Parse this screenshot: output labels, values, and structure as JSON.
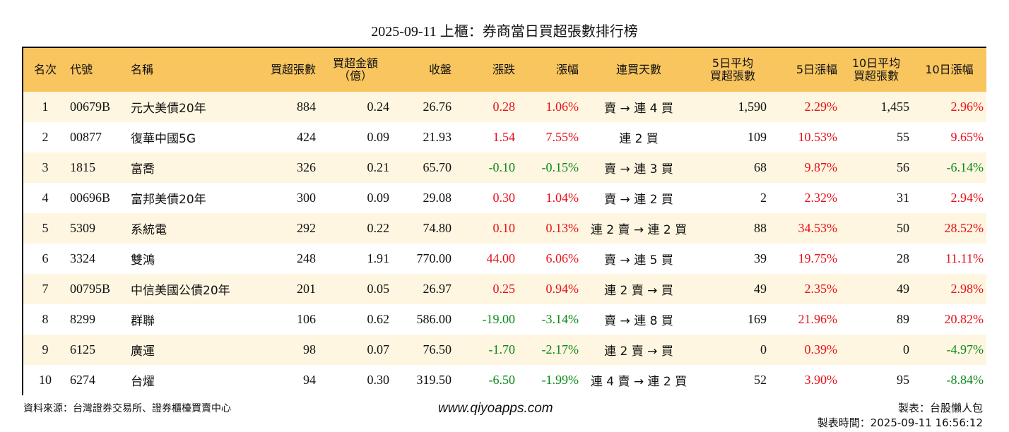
{
  "title": "2025-09-11 上櫃：券商當日買超張數排行榜",
  "headers": [
    "名次",
    "代號",
    "名稱",
    "買超張數",
    "買超金額\n（億）",
    "收盤",
    "漲跌",
    "漲幅",
    "連買天數",
    "5日平均\n買超張數",
    "5日漲幅",
    "10日平均\n買超張數",
    "10日漲幅"
  ],
  "rows": [
    {
      "rank": "1",
      "code": "00679B",
      "name": "元大美債20年",
      "net_buy": "884",
      "amount": "0.24",
      "close": "26.76",
      "change": "0.28",
      "pct": "1.06%",
      "streak": "賣 → 連 4 買",
      "avg5": "1,590",
      "pct5": "2.29%",
      "avg10": "1,455",
      "pct10": "2.96%"
    },
    {
      "rank": "2",
      "code": "00877",
      "name": "復華中國5G",
      "net_buy": "424",
      "amount": "0.09",
      "close": "21.93",
      "change": "1.54",
      "pct": "7.55%",
      "streak": "連 2 買",
      "avg5": "109",
      "pct5": "10.53%",
      "avg10": "55",
      "pct10": "9.65%"
    },
    {
      "rank": "3",
      "code": "1815",
      "name": "富喬",
      "net_buy": "326",
      "amount": "0.21",
      "close": "65.70",
      "change": "-0.10",
      "pct": "-0.15%",
      "streak": "賣 → 連 3 買",
      "avg5": "68",
      "pct5": "9.87%",
      "avg10": "56",
      "pct10": "-6.14%"
    },
    {
      "rank": "4",
      "code": "00696B",
      "name": "富邦美債20年",
      "net_buy": "300",
      "amount": "0.09",
      "close": "29.08",
      "change": "0.30",
      "pct": "1.04%",
      "streak": "賣 → 連 2 買",
      "avg5": "2",
      "pct5": "2.32%",
      "avg10": "31",
      "pct10": "2.94%"
    },
    {
      "rank": "5",
      "code": "5309",
      "name": "系統電",
      "net_buy": "292",
      "amount": "0.22",
      "close": "74.80",
      "change": "0.10",
      "pct": "0.13%",
      "streak": "連 2 賣 → 連 2 買",
      "avg5": "88",
      "pct5": "34.53%",
      "avg10": "50",
      "pct10": "28.52%"
    },
    {
      "rank": "6",
      "code": "3324",
      "name": "雙鴻",
      "net_buy": "248",
      "amount": "1.91",
      "close": "770.00",
      "change": "44.00",
      "pct": "6.06%",
      "streak": "賣 → 連 5 買",
      "avg5": "39",
      "pct5": "19.75%",
      "avg10": "28",
      "pct10": "11.11%"
    },
    {
      "rank": "7",
      "code": "00795B",
      "name": "中信美國公債20年",
      "net_buy": "201",
      "amount": "0.05",
      "close": "26.97",
      "change": "0.25",
      "pct": "0.94%",
      "streak": "連 2 賣 → 買",
      "avg5": "49",
      "pct5": "2.35%",
      "avg10": "49",
      "pct10": "2.98%"
    },
    {
      "rank": "8",
      "code": "8299",
      "name": "群聯",
      "net_buy": "106",
      "amount": "0.62",
      "close": "586.00",
      "change": "-19.00",
      "pct": "-3.14%",
      "streak": "賣 → 連 8 買",
      "avg5": "169",
      "pct5": "21.96%",
      "avg10": "89",
      "pct10": "20.82%"
    },
    {
      "rank": "9",
      "code": "6125",
      "name": "廣運",
      "net_buy": "98",
      "amount": "0.07",
      "close": "76.50",
      "change": "-1.70",
      "pct": "-2.17%",
      "streak": "連 2 賣 → 買",
      "avg5": "0",
      "pct5": "0.39%",
      "avg10": "0",
      "pct10": "-4.97%"
    },
    {
      "rank": "10",
      "code": "6274",
      "name": "台燿",
      "net_buy": "94",
      "amount": "0.30",
      "close": "319.50",
      "change": "-6.50",
      "pct": "-1.99%",
      "streak": "連 4 賣 → 連 2 買",
      "avg5": "52",
      "pct5": "3.90%",
      "avg10": "95",
      "pct10": "-8.84%"
    }
  ],
  "footer": {
    "source": "資料來源：台灣證券交易所、證券櫃檯買賣中心",
    "website": "www.qiyoapps.com",
    "author": "製表：台股懶人包",
    "timestamp": "製表時間：2025-09-11 16:56:12"
  },
  "colors": {
    "header_bg": "#f9c55e",
    "row_alt_bg": "#fef6e0",
    "up": "#e8101a",
    "down": "#0b8a1a"
  }
}
